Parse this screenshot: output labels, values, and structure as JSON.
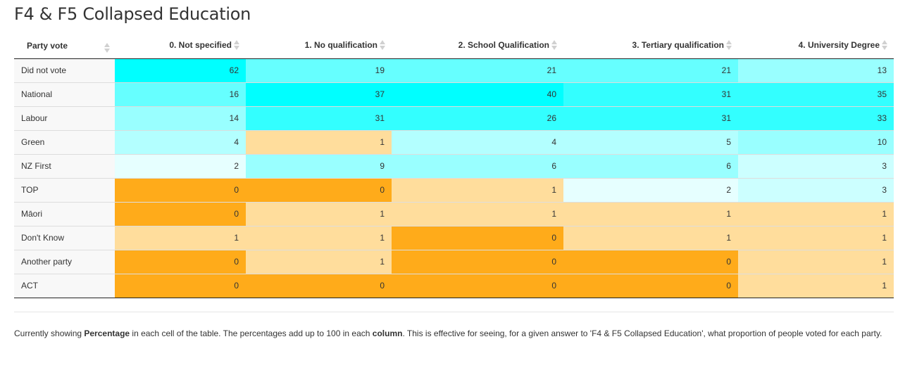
{
  "title": "F4 & F5 Collapsed Education",
  "chart_data": {
    "type": "table",
    "title": "F4 & F5 Collapsed Education",
    "row_header": "Party vote",
    "columns": [
      "0. Not specified",
      "1. No qualification",
      "2. School Qualification",
      "3. Tertiary qualification",
      "4. University Degree"
    ],
    "rows": [
      {
        "label": "Did not vote",
        "values": [
          62,
          19,
          21,
          21,
          13
        ]
      },
      {
        "label": "National",
        "values": [
          16,
          37,
          40,
          31,
          35
        ]
      },
      {
        "label": "Labour",
        "values": [
          14,
          31,
          26,
          31,
          33
        ]
      },
      {
        "label": "Green",
        "values": [
          4,
          1,
          4,
          5,
          10
        ]
      },
      {
        "label": "NZ First",
        "values": [
          2,
          9,
          6,
          6,
          3
        ]
      },
      {
        "label": "TOP",
        "values": [
          0,
          0,
          1,
          2,
          3
        ]
      },
      {
        "label": "Māori",
        "values": [
          0,
          1,
          1,
          1,
          1
        ]
      },
      {
        "label": "Don't Know",
        "values": [
          1,
          1,
          0,
          1,
          1
        ]
      },
      {
        "label": "Another party",
        "values": [
          0,
          1,
          0,
          0,
          1
        ]
      },
      {
        "label": "ACT",
        "values": [
          0,
          0,
          0,
          0,
          1
        ]
      }
    ],
    "cell_colors": [
      [
        "#00ffff",
        "#66ffff",
        "#66ffff",
        "#66ffff",
        "#99ffff"
      ],
      [
        "#66ffff",
        "#00ffff",
        "#00ffff",
        "#33ffff",
        "#33ffff"
      ],
      [
        "#99ffff",
        "#33ffff",
        "#33ffff",
        "#33ffff",
        "#33ffff"
      ],
      [
        "#b3ffff",
        "#ffdd9c",
        "#b3ffff",
        "#b3ffff",
        "#99ffff"
      ],
      [
        "#e6ffff",
        "#99ffff",
        "#99ffff",
        "#99ffff",
        "#ccffff"
      ],
      [
        "#ffab1a",
        "#ffab1a",
        "#ffdd9c",
        "#e6ffff",
        "#ccffff"
      ],
      [
        "#ffab1a",
        "#ffdd9c",
        "#ffdd9c",
        "#ffdd9c",
        "#ffdd9c"
      ],
      [
        "#ffdd9c",
        "#ffdd9c",
        "#ffab1a",
        "#ffdd9c",
        "#ffdd9c"
      ],
      [
        "#ffab1a",
        "#ffdd9c",
        "#ffab1a",
        "#ffab1a",
        "#ffdd9c"
      ],
      [
        "#ffab1a",
        "#ffab1a",
        "#ffab1a",
        "#ffab1a",
        "#ffdd9c"
      ]
    ]
  },
  "note": {
    "p1": "Currently showing ",
    "b1": "Percentage",
    "p2": " in each cell of the table. The percentages add up to 100 in each ",
    "b2": "column",
    "p3": ". This is effective for seeing, for a given answer to 'F4 & F5 Collapsed Education', what proportion of people voted for each party."
  }
}
